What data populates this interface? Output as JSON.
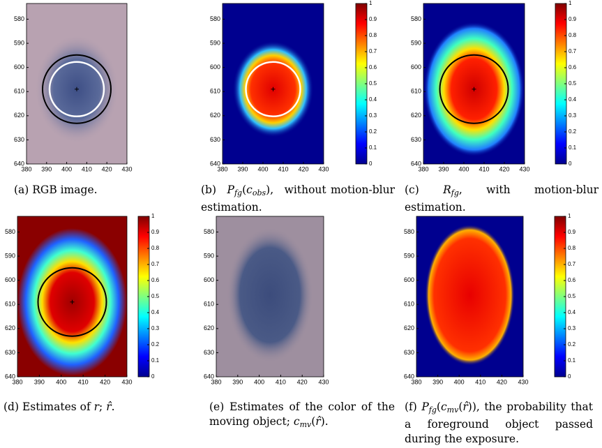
{
  "panels": [
    {
      "image": "rgb",
      "xlim": [
        380,
        430
      ],
      "ylim": [
        573.5,
        640
      ],
      "xticks": [
        380,
        390,
        400,
        410,
        420,
        430
      ],
      "yticks": [
        580,
        590,
        600,
        610,
        620,
        630,
        640
      ],
      "colorbar": null,
      "caption": [
        {
          "text": "(a) RGB image.",
          "style": "normal"
        }
      ]
    },
    {
      "image": "prob-obs",
      "xlim": [
        380,
        430
      ],
      "ylim": [
        573.5,
        640
      ],
      "xticks": [
        380,
        390,
        400,
        410,
        420,
        430
      ],
      "yticks": [
        580,
        590,
        600,
        610,
        620,
        630,
        640
      ],
      "colorbar": {
        "lim": [
          0,
          1
        ],
        "ticks": [
          0,
          0.1,
          0.2,
          0.3,
          0.4,
          0.5,
          0.6,
          0.7,
          0.8,
          0.9,
          1
        ]
      },
      "caption": [
        {
          "text": "(b) ",
          "style": "normal"
        },
        {
          "text": "P",
          "style": "italic"
        },
        {
          "text": "fg",
          "style": "sub"
        },
        {
          "text": "(",
          "style": "normal"
        },
        {
          "text": "c",
          "style": "italic"
        },
        {
          "text": "obs",
          "style": "sub"
        },
        {
          "text": "), without motion-blur estimation.",
          "style": "normal"
        }
      ]
    },
    {
      "image": "r-fg",
      "xlim": [
        380,
        430
      ],
      "ylim": [
        573.5,
        640
      ],
      "xticks": [
        380,
        390,
        400,
        410,
        420,
        430
      ],
      "yticks": [
        580,
        590,
        600,
        610,
        620,
        630,
        640
      ],
      "colorbar": {
        "lim": [
          0,
          1
        ],
        "ticks": [
          0,
          0.1,
          0.2,
          0.3,
          0.4,
          0.5,
          0.6,
          0.7,
          0.8,
          0.9,
          1
        ]
      },
      "caption": [
        {
          "text": "(c) ",
          "style": "normal"
        },
        {
          "text": "R",
          "style": "italic"
        },
        {
          "text": "fg",
          "style": "sub"
        },
        {
          "text": ", with motion-blur estimation.",
          "style": "normal"
        }
      ]
    },
    {
      "image": "r-est",
      "xlim": [
        380,
        430
      ],
      "ylim": [
        573.5,
        640
      ],
      "xticks": [
        380,
        390,
        400,
        410,
        420,
        430
      ],
      "yticks": [
        580,
        590,
        600,
        610,
        620,
        630,
        640
      ],
      "colorbar": {
        "lim": [
          0,
          1
        ],
        "ticks": [
          0,
          0.1,
          0.2,
          0.3,
          0.4,
          0.5,
          0.6,
          0.7,
          0.8,
          0.9,
          1
        ]
      },
      "caption": [
        {
          "text": "(d) Estimates of ",
          "style": "normal"
        },
        {
          "text": "r",
          "style": "italic"
        },
        {
          "text": "; ",
          "style": "normal"
        },
        {
          "text": "r̂",
          "style": "italic"
        },
        {
          "text": ".",
          "style": "normal"
        }
      ]
    },
    {
      "image": "color-mv",
      "xlim": [
        380,
        430
      ],
      "ylim": [
        573.5,
        640
      ],
      "xticks": [
        380,
        390,
        400,
        410,
        420,
        430
      ],
      "yticks": [
        580,
        590,
        600,
        610,
        620,
        630,
        640
      ],
      "colorbar": null,
      "caption": [
        {
          "text": "(e) Estimates of the color of the moving object; ",
          "style": "normal"
        },
        {
          "text": "c",
          "style": "italic"
        },
        {
          "text": "mv",
          "style": "sub"
        },
        {
          "text": "(",
          "style": "normal"
        },
        {
          "text": "r̂",
          "style": "italic"
        },
        {
          "text": ").",
          "style": "normal"
        }
      ]
    },
    {
      "image": "prob-mv",
      "xlim": [
        380,
        430
      ],
      "ylim": [
        573.5,
        640
      ],
      "xticks": [
        380,
        390,
        400,
        410,
        420,
        430
      ],
      "yticks": [
        580,
        590,
        600,
        610,
        620,
        630,
        640
      ],
      "colorbar": {
        "lim": [
          0,
          1
        ],
        "ticks": [
          0,
          0.1,
          0.2,
          0.3,
          0.4,
          0.5,
          0.6,
          0.7,
          0.8,
          0.9,
          1
        ]
      },
      "caption": [
        {
          "text": "(f) ",
          "style": "normal"
        },
        {
          "text": "P",
          "style": "italic"
        },
        {
          "text": "fg",
          "style": "sub"
        },
        {
          "text": "(",
          "style": "normal"
        },
        {
          "text": "c",
          "style": "italic"
        },
        {
          "text": "mv",
          "style": "sub"
        },
        {
          "text": "(",
          "style": "normal"
        },
        {
          "text": "r̂",
          "style": "italic"
        },
        {
          "text": ")), the probability that a foreground object passed during the exposure.",
          "style": "normal"
        }
      ]
    }
  ]
}
